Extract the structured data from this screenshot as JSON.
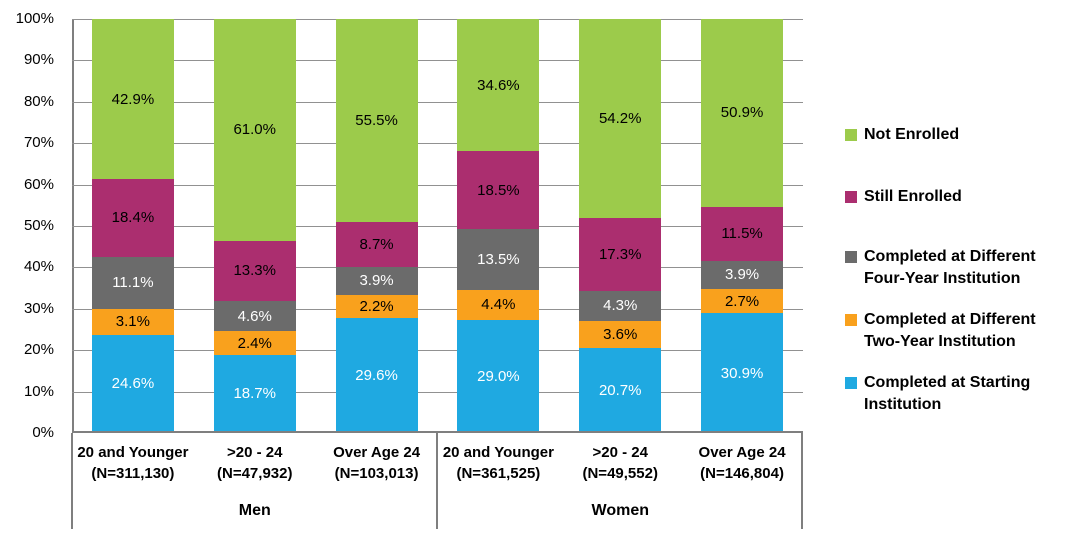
{
  "colors": {
    "gridline": "#919191",
    "axis": "#7f7f7f",
    "background": "#ffffff",
    "text": "#000000"
  },
  "chart_data": {
    "type": "bar",
    "stacked": true,
    "orientation": "vertical",
    "grid": true,
    "legend_position": "right",
    "ylim": [
      0,
      100
    ],
    "y_ticks": [
      "100%",
      "90%",
      "80%",
      "70%",
      "60%",
      "50%",
      "40%",
      "30%",
      "20%",
      "10%",
      "0%"
    ],
    "value_suffix": "%",
    "groups": [
      {
        "label": "Men",
        "categories": [
          {
            "line1": "20 and Younger",
            "line2": "(N=311,130)"
          },
          {
            "line1": ">20 - 24",
            "line2": "(N=47,932)"
          },
          {
            "line1": "Over Age 24",
            "line2": "(N=103,013)"
          }
        ]
      },
      {
        "label": "Women",
        "categories": [
          {
            "line1": "20 and Younger",
            "line2": "(N=361,525)"
          },
          {
            "line1": ">20 - 24",
            "line2": "(N=49,552)"
          },
          {
            "line1": "Over Age 24",
            "line2": "(N=146,804)"
          }
        ]
      }
    ],
    "series": [
      {
        "name": "Not Enrolled",
        "color": "#9CCB4B",
        "label_color": "#000000",
        "values": [
          42.9,
          61.0,
          55.5,
          34.6,
          54.2,
          50.9
        ]
      },
      {
        "name": "Still Enrolled",
        "color": "#AB2E6F",
        "label_color": "#000000",
        "values": [
          18.4,
          13.3,
          8.7,
          18.5,
          17.3,
          11.5
        ]
      },
      {
        "name": "Completed at Different Four-Year Institution",
        "color": "#6B6B6B",
        "label_color": "#FFFFFF",
        "values": [
          11.1,
          4.6,
          3.9,
          13.5,
          4.3,
          3.9
        ]
      },
      {
        "name": "Completed at Different Two-Year Institution",
        "color": "#F9A11D",
        "label_color": "#000000",
        "values": [
          3.1,
          2.4,
          2.2,
          4.4,
          3.6,
          2.7
        ]
      },
      {
        "name": "Completed at Starting Institution",
        "color": "#1FA9E1",
        "label_color": "#FFFFFF",
        "values": [
          24.6,
          18.7,
          29.6,
          29.0,
          20.7,
          30.9
        ]
      }
    ]
  }
}
